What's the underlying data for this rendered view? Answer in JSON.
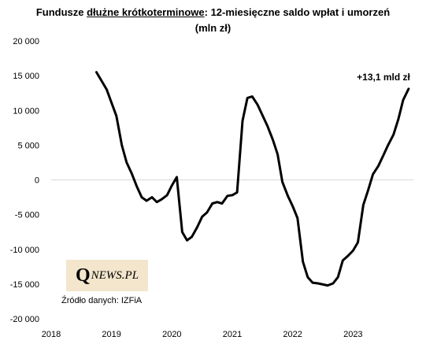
{
  "chart_data": {
    "type": "line",
    "title_parts": {
      "prefix": "Fundusze ",
      "underlined": "dłużne krótkoterminowe",
      "suffix": ": 12-miesięczne saldo wpłat i umorzeń",
      "line2": "(mln zł)"
    },
    "xlabel": "",
    "ylabel": "",
    "ylim": [
      -20000,
      20000
    ],
    "xlim": [
      2018,
      2024
    ],
    "y_ticks": [
      20000,
      15000,
      10000,
      5000,
      0,
      -5000,
      -10000,
      -15000,
      -20000
    ],
    "y_tick_labels": [
      "20 000",
      "15 000",
      "10 000",
      "5 000",
      "0",
      "-5 000",
      "-10 000",
      "-15 000",
      "-20 000"
    ],
    "x_ticks": [
      2018,
      2019,
      2020,
      2021,
      2022,
      2023
    ],
    "x_tick_labels": [
      "2018",
      "2019",
      "2020",
      "2021",
      "2022",
      "2023"
    ],
    "grid": false,
    "series": [
      {
        "color": "#000000",
        "points": [
          [
            2018.75,
            15500
          ],
          [
            2018.92,
            13000
          ],
          [
            2019.08,
            9200
          ],
          [
            2019.17,
            5000
          ],
          [
            2019.25,
            2500
          ],
          [
            2019.33,
            1000
          ],
          [
            2019.42,
            -1000
          ],
          [
            2019.5,
            -2500
          ],
          [
            2019.58,
            -3000
          ],
          [
            2019.67,
            -2500
          ],
          [
            2019.75,
            -3200
          ],
          [
            2019.83,
            -2800
          ],
          [
            2019.92,
            -2200
          ],
          [
            2020.0,
            -800
          ],
          [
            2020.08,
            400
          ],
          [
            2020.17,
            -7500
          ],
          [
            2020.25,
            -8700
          ],
          [
            2020.33,
            -8200
          ],
          [
            2020.42,
            -6800
          ],
          [
            2020.5,
            -5300
          ],
          [
            2020.58,
            -4700
          ],
          [
            2020.67,
            -3400
          ],
          [
            2020.75,
            -3200
          ],
          [
            2020.83,
            -3400
          ],
          [
            2020.92,
            -2300
          ],
          [
            2021.0,
            -2200
          ],
          [
            2021.08,
            -1800
          ],
          [
            2021.17,
            8500
          ],
          [
            2021.25,
            11800
          ],
          [
            2021.33,
            12000
          ],
          [
            2021.42,
            10800
          ],
          [
            2021.5,
            9300
          ],
          [
            2021.58,
            7800
          ],
          [
            2021.67,
            5800
          ],
          [
            2021.75,
            3700
          ],
          [
            2021.83,
            -300
          ],
          [
            2021.92,
            -2300
          ],
          [
            2022.0,
            -3800
          ],
          [
            2022.08,
            -5500
          ],
          [
            2022.17,
            -11800
          ],
          [
            2022.25,
            -14000
          ],
          [
            2022.33,
            -14800
          ],
          [
            2022.42,
            -14900
          ],
          [
            2022.58,
            -15200
          ],
          [
            2022.67,
            -14900
          ],
          [
            2022.75,
            -14000
          ],
          [
            2022.83,
            -11600
          ],
          [
            2022.92,
            -10900
          ],
          [
            2023.0,
            -10200
          ],
          [
            2023.08,
            -9000
          ],
          [
            2023.17,
            -3600
          ],
          [
            2023.25,
            -1500
          ],
          [
            2023.33,
            800
          ],
          [
            2023.42,
            2000
          ],
          [
            2023.5,
            3500
          ],
          [
            2023.58,
            5000
          ],
          [
            2023.67,
            6500
          ],
          [
            2023.75,
            8700
          ],
          [
            2023.83,
            11500
          ],
          [
            2023.92,
            13100
          ]
        ]
      }
    ],
    "annotation": {
      "text": "+13,1 mld zł",
      "x": 2023.92,
      "y": 13100
    }
  },
  "logo": {
    "q": "Q",
    "rest": "NEWS.PL"
  },
  "source": "Źródło danych: IZFiA"
}
